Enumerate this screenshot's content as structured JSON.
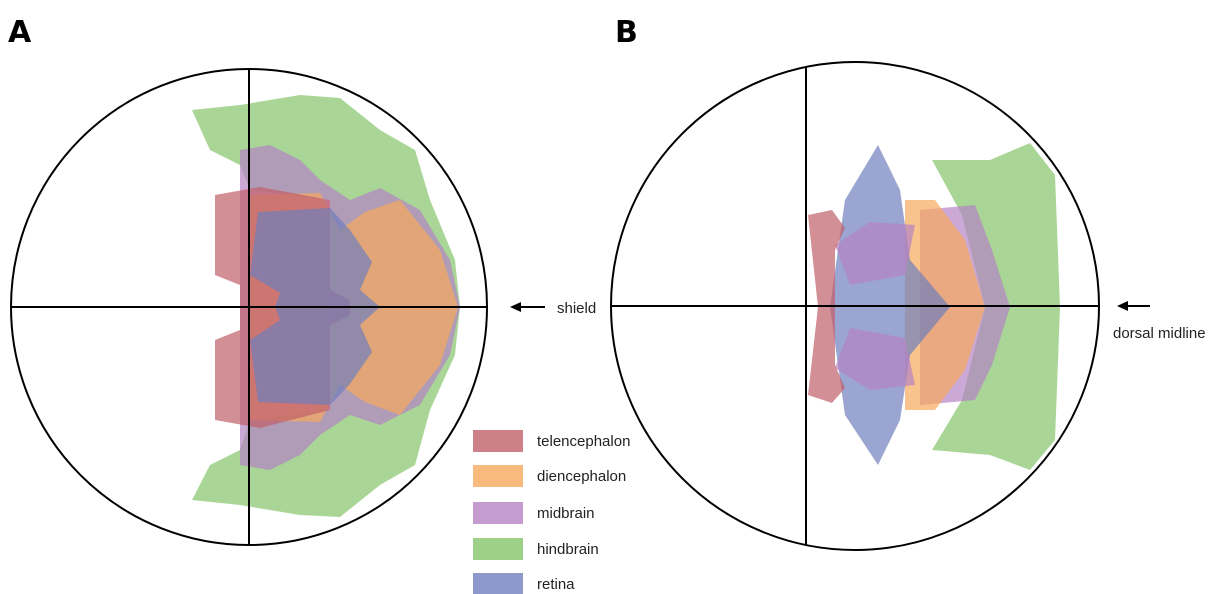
{
  "panels": [
    {
      "label": "A",
      "annotation": "shield"
    },
    {
      "label": "B",
      "annotation": "dorsal midline"
    }
  ],
  "legend": [
    {
      "label": "telencephalon",
      "color": "#c0606a"
    },
    {
      "label": "diencephalon",
      "color": "#f6a95c"
    },
    {
      "label": "midbrain",
      "color": "#b583c4"
    },
    {
      "label": "hindbrain",
      "color": "#84c56a"
    },
    {
      "label": "retina",
      "color": "#6f7fbd"
    }
  ]
}
